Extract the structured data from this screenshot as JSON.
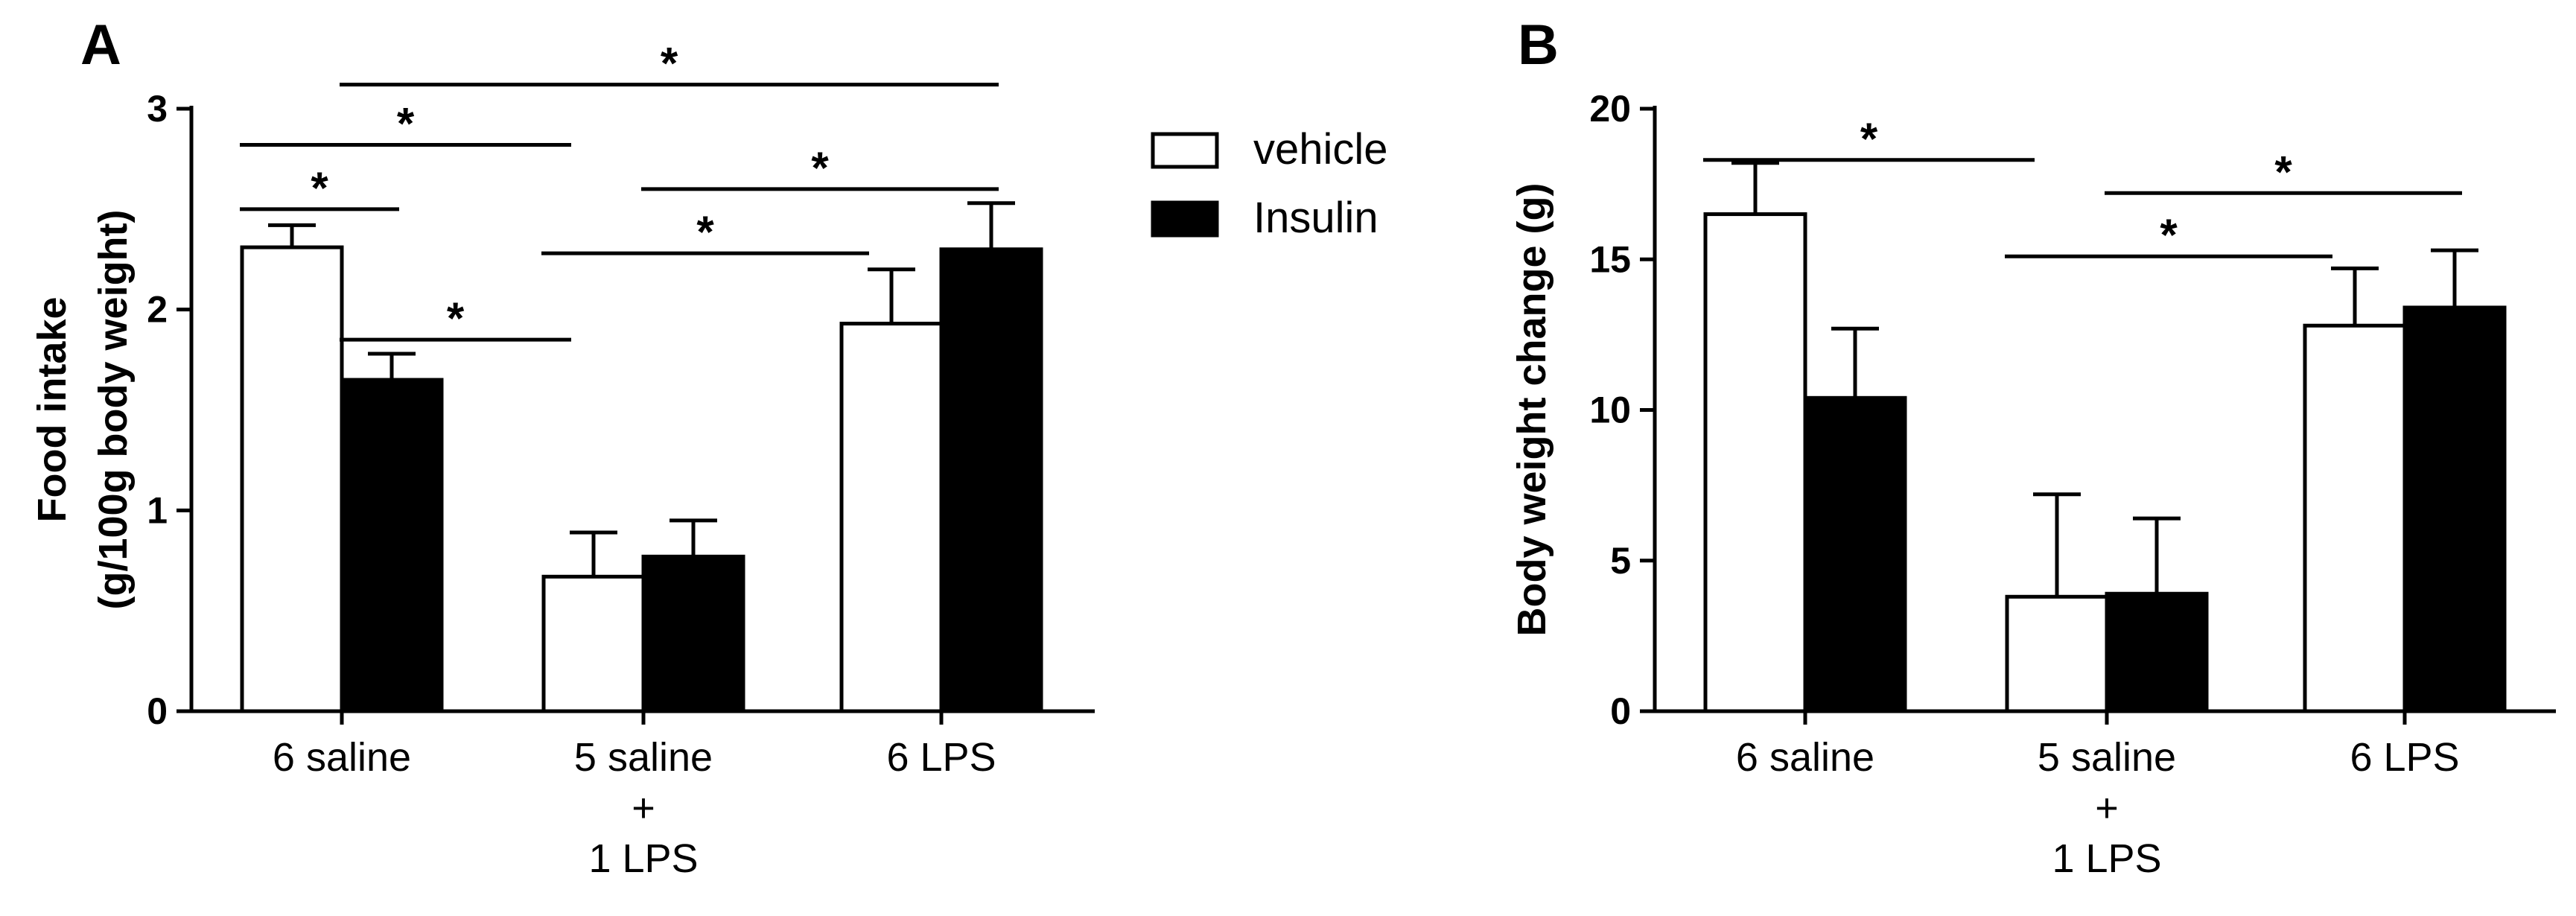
{
  "legend": [
    {
      "label": "vehicle",
      "fill": "#ffffff"
    },
    {
      "label": "Insulin",
      "fill": "#000000"
    }
  ],
  "colors": {
    "axis": "#000000",
    "vehicle": "#ffffff",
    "insulin": "#000000"
  },
  "chart_data": [
    {
      "type": "bar",
      "panel": "A",
      "categories": [
        [
          "6 saline"
        ],
        [
          "5 saline",
          "+",
          "1 LPS"
        ],
        [
          "6 LPS"
        ]
      ],
      "ylabel": [
        "Food intake",
        "(g/100g body weight)"
      ],
      "xlabel": "",
      "ylim": [
        0,
        3
      ],
      "yticks": [
        "0",
        "1",
        "2",
        "3"
      ],
      "series": [
        {
          "name": "vehicle",
          "values": [
            2.31,
            0.67,
            1.93
          ],
          "errors": [
            0.11,
            0.22,
            0.27
          ]
        },
        {
          "name": "Insulin",
          "values": [
            1.65,
            0.77,
            2.3
          ],
          "errors": [
            0.13,
            0.18,
            0.23
          ]
        }
      ],
      "significance": [
        {
          "from": [
            0,
            0
          ],
          "to": [
            0,
            1
          ],
          "y": 2.5,
          "label": "*"
        },
        {
          "from": [
            0,
            0
          ],
          "to": [
            1,
            0
          ],
          "y": 2.82,
          "label": "*"
        },
        {
          "from": [
            0,
            1
          ],
          "to": [
            2,
            1
          ],
          "y": 3.12,
          "label": "*"
        },
        {
          "from": [
            0,
            1
          ],
          "to": [
            1,
            0
          ],
          "y": 1.85,
          "label": "*"
        },
        {
          "from": [
            1,
            0
          ],
          "to": [
            2,
            0
          ],
          "y": 2.28,
          "label": "*"
        },
        {
          "from": [
            1,
            1
          ],
          "to": [
            2,
            1
          ],
          "y": 2.6,
          "label": "*"
        }
      ]
    },
    {
      "type": "bar",
      "panel": "B",
      "categories": [
        [
          "6 saline"
        ],
        [
          "5 saline",
          "+",
          "1 LPS"
        ],
        [
          "6 LPS"
        ]
      ],
      "ylabel": [
        "Body weight change (g)"
      ],
      "xlabel": "",
      "ylim": [
        0,
        20
      ],
      "yticks": [
        "0",
        "5",
        "10",
        "15",
        "20"
      ],
      "series": [
        {
          "name": "vehicle",
          "values": [
            16.5,
            3.8,
            12.8
          ],
          "errors": [
            1.7,
            3.4,
            1.9
          ]
        },
        {
          "name": "Insulin",
          "values": [
            10.4,
            3.9,
            13.4
          ],
          "errors": [
            2.3,
            2.5,
            1.9
          ]
        }
      ],
      "significance": [
        {
          "from": [
            0,
            0
          ],
          "to": [
            1,
            0
          ],
          "y": 18.3,
          "label": "*"
        },
        {
          "from": [
            1,
            0
          ],
          "to": [
            2,
            0
          ],
          "y": 15.1,
          "label": "*"
        },
        {
          "from": [
            1,
            1
          ],
          "to": [
            2,
            1
          ],
          "y": 17.2,
          "label": "*"
        }
      ]
    }
  ]
}
